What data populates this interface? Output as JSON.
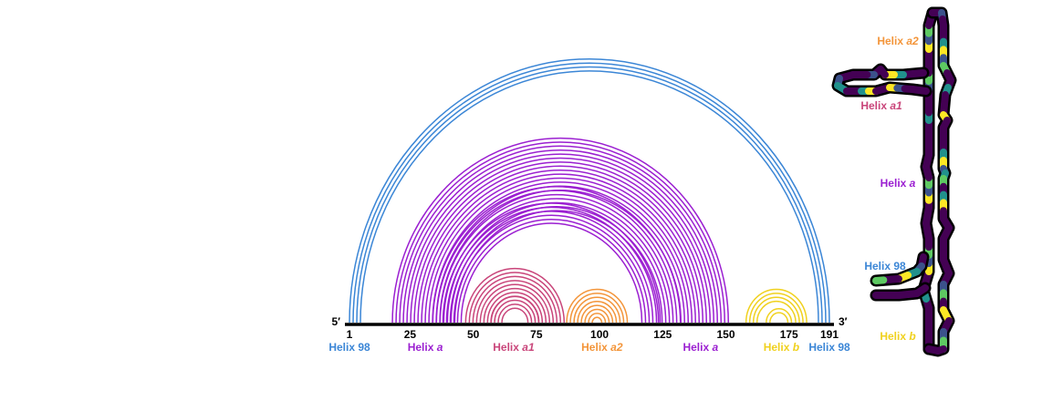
{
  "colors": {
    "helix98": "#3b86d6",
    "helixA": "#9b1fd1",
    "helixA1": "#c9457a",
    "helixA2": "#f3953a",
    "helixB": "#f0d11e",
    "axis": "#000000",
    "backbone": "#000000",
    "viridis": [
      "#440154",
      "#3b528b",
      "#21918c",
      "#5ec962",
      "#fde725"
    ]
  },
  "axis": {
    "five_prime": "5′",
    "three_prime": "3′",
    "min": 1,
    "max": 191,
    "ticks": [
      {
        "value": 1,
        "label": "1"
      },
      {
        "value": 25,
        "label": "25"
      },
      {
        "value": 50,
        "label": "50"
      },
      {
        "value": 75,
        "label": "75"
      },
      {
        "value": 100,
        "label": "100"
      },
      {
        "value": 125,
        "label": "125"
      },
      {
        "value": 150,
        "label": "150"
      },
      {
        "value": 175,
        "label": "175"
      },
      {
        "value": 191,
        "label": "191"
      }
    ]
  },
  "arcs": [
    {
      "name": "helix-98",
      "colorKey": "helix98",
      "start5": 1,
      "start3": 191,
      "count": 4
    },
    {
      "name": "helix-a-outer",
      "colorKey": "helixA",
      "start5": 18,
      "start3": 151,
      "count": 14
    },
    {
      "name": "helix-a-mid",
      "colorKey": "helixA",
      "start5": 34,
      "start3": 132,
      "count": 7
    },
    {
      "name": "helix-a-inner",
      "colorKey": "helixA",
      "start5": 38,
      "start3": 124,
      "count": 6
    },
    {
      "name": "helix-a1-outer",
      "colorKey": "helixA1",
      "start5": 47,
      "start3": 86,
      "count": 8
    },
    {
      "name": "helix-a1-inner",
      "colorKey": "helixA1",
      "start5": 57,
      "start3": 76,
      "count": 4
    },
    {
      "name": "helix-a2",
      "colorKey": "helixA2",
      "start5": 87,
      "start3": 111,
      "count": 8
    },
    {
      "name": "helix-b-outer",
      "colorKey": "helixB",
      "start5": 158,
      "start3": 182,
      "count": 4
    },
    {
      "name": "helix-b-inner",
      "colorKey": "helixB",
      "start5": 166,
      "start3": 176,
      "count": 2
    }
  ],
  "helix_labels": [
    {
      "name": "helix-label-98-left",
      "prefix": "Helix",
      "suffix": "98",
      "italic": false,
      "colorKey": "helix98",
      "at": 1
    },
    {
      "name": "helix-label-a-left",
      "prefix": "Helix",
      "suffix": "a",
      "italic": true,
      "colorKey": "helixA",
      "at": 31
    },
    {
      "name": "helix-label-a1",
      "prefix": "Helix",
      "suffix": "a1",
      "italic": true,
      "colorKey": "helixA1",
      "at": 66
    },
    {
      "name": "helix-label-a2",
      "prefix": "Helix",
      "suffix": "a2",
      "italic": true,
      "colorKey": "helixA2",
      "at": 101
    },
    {
      "name": "helix-label-a-right",
      "prefix": "Helix",
      "suffix": "a",
      "italic": true,
      "colorKey": "helixA",
      "at": 140
    },
    {
      "name": "helix-label-b",
      "prefix": "Helix",
      "suffix": "b",
      "italic": true,
      "colorKey": "helixB",
      "at": 172
    },
    {
      "name": "helix-label-98-right",
      "prefix": "Helix",
      "suffix": "98",
      "italic": false,
      "colorKey": "helix98",
      "at": 191
    }
  ],
  "structure_labels": [
    {
      "name": "structure-label-a2",
      "prefix": "Helix",
      "suffix": "a2",
      "italic": true,
      "colorKey": "helixA2"
    },
    {
      "name": "structure-label-a1",
      "prefix": "Helix",
      "suffix": "a1",
      "italic": true,
      "colorKey": "helixA1"
    },
    {
      "name": "structure-label-a",
      "prefix": "Helix",
      "suffix": "a",
      "italic": true,
      "colorKey": "helixA"
    },
    {
      "name": "structure-label-98",
      "prefix": "Helix",
      "suffix": "98",
      "italic": false,
      "colorKey": "helix98"
    },
    {
      "name": "structure-label-b",
      "prefix": "Helix",
      "suffix": "b",
      "italic": true,
      "colorKey": "helixB"
    }
  ]
}
